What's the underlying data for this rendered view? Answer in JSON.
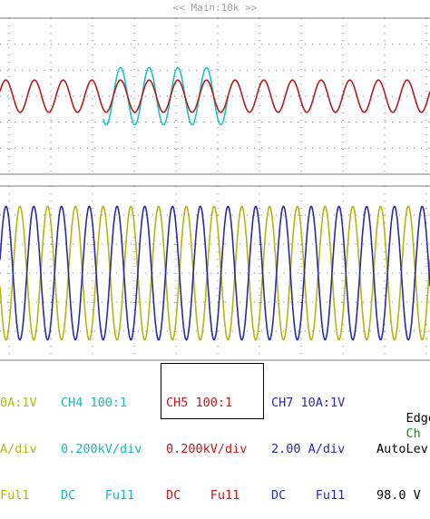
{
  "header": {
    "timebase_label": "<< Main:10k >>"
  },
  "colors": {
    "background": "#ffffff",
    "grid": "#7a7a7a",
    "ch_red": "#b01e1e",
    "ch_cyan": "#19c2c8",
    "ch_blue": "#2a2aa8",
    "ch_yellow": "#b4b412",
    "ch_green": "#00a000"
  },
  "waveforms": {
    "upper_red": {
      "color": "ch_red",
      "cycles": 15,
      "amplitude_divs": 0.62
    },
    "upper_cyan": {
      "color": "ch_cyan",
      "cycles": 15,
      "amplitude_divs": 1.1,
      "active_range": [
        0.24,
        0.53
      ]
    },
    "lower_blue": {
      "color": "ch_blue",
      "cycles": 15.5,
      "amplitude_divs": 2.3
    },
    "lower_yellow": {
      "color": "ch_yellow",
      "cycles": 15.5,
      "amplitude_divs": 2.3
    }
  },
  "channels": [
    {
      "id": "ch3",
      "lines": [
        "0A:1V",
        "A/div",
        "Ful1"
      ],
      "color": "ch_yellow"
    },
    {
      "id": "ch4",
      "lines": [
        "CH4 100:1",
        "0.200kV/div",
        "DC    Fu11"
      ],
      "color": "ch_cyan"
    },
    {
      "id": "ch5",
      "lines": [
        "CH5 100:1",
        "0.200kV/div",
        "DC    Fu11"
      ],
      "color": "ch_red",
      "selected": true
    },
    {
      "id": "ch7",
      "lines": [
        "CH7 10A:1V",
        "2.00 A/div",
        "DC    Fu11"
      ],
      "color": "ch_blue"
    }
  ],
  "trigger": {
    "mode_label": "Edge",
    "channel_label": "Ch",
    "level_mode": "AutoLev",
    "level_value": "98.0 V"
  }
}
